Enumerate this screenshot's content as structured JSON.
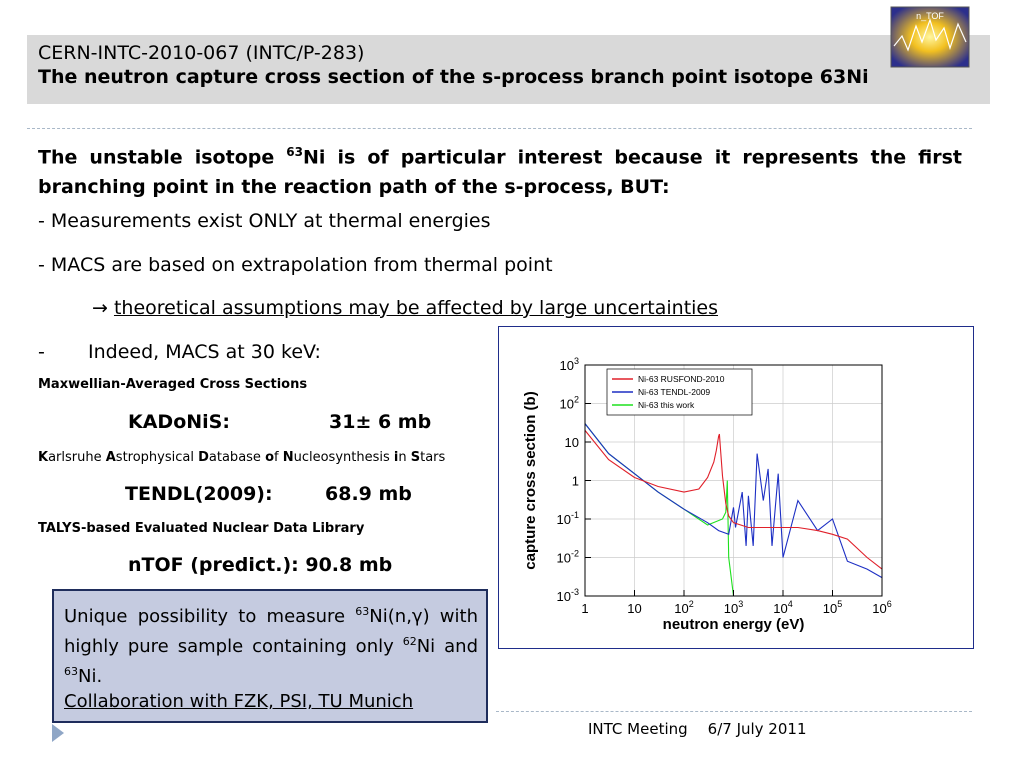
{
  "header": {
    "line1": "CERN-INTC-2010-067 (INTC/P-283)",
    "line2": "The neutron capture cross section of the s-process branch point isotope 63Ni"
  },
  "logo": {
    "text": "n_TOF"
  },
  "intro": {
    "part1": "The unstable isotope ",
    "sup": "63",
    "part2": "Ni is of particular interest because it represents the first  branching point in the reaction path of the s-process, BUT:"
  },
  "bullets": {
    "b1": "- Measurements exist ONLY at thermal energies",
    "b2": "- MACS are based on extrapolation from thermal point",
    "arrow": "→",
    "arrow_text": "theoretical assumptions may be affected by large uncertainties",
    "b3_dash": "-",
    "b3_text": "Indeed, MACS at 30 keV:"
  },
  "macs_def": "Maxwellian-Averaged Cross Sections",
  "kadonis": {
    "label": "KADoNiS:",
    "value": "31± 6 mb"
  },
  "kadonis_full": [
    {
      "b": "K",
      "n": "arlsruhe "
    },
    {
      "b": "A",
      "n": "strophysical "
    },
    {
      "b": "D",
      "n": "atabase "
    },
    {
      "b": "o",
      "n": "f "
    },
    {
      "b": "N",
      "n": "ucleosynthesis "
    },
    {
      "b": "i",
      "n": "n "
    },
    {
      "b": "S",
      "n": "tars"
    }
  ],
  "tendl": {
    "label": "TENDL(2009):",
    "value": "68.9 mb"
  },
  "tendl_full": "TALYS-based Evaluated Nuclear Data Library",
  "ntof": "nTOF (predict.): 90.8 mb",
  "box": {
    "t1": "Unique possibility to measure ",
    "s1": "63",
    "t2": "Ni(n,γ) with highly pure sample  containing only ",
    "s2": "62",
    "t3": "Ni and ",
    "s3": "63",
    "t4": "Ni.",
    "collab": "Collaboration with FZK, PSI, TU Munich"
  },
  "footer": {
    "meeting": "INTC Meeting",
    "date": "6/7 July 2011"
  },
  "chart_data": {
    "type": "line",
    "xlabel": "neutron energy (eV)",
    "ylabel": "capture cross section (b)",
    "xscale": "log",
    "yscale": "log",
    "xlim": [
      1,
      1000000
    ],
    "ylim": [
      0.001,
      1000
    ],
    "x_ticks": [
      {
        "value": 1,
        "base": "1",
        "exp": ""
      },
      {
        "value": 10,
        "base": "10",
        "exp": ""
      },
      {
        "value": 100,
        "base": "10",
        "exp": "2"
      },
      {
        "value": 1000,
        "base": "10",
        "exp": "3"
      },
      {
        "value": 10000,
        "base": "10",
        "exp": "4"
      },
      {
        "value": 100000,
        "base": "10",
        "exp": "5"
      },
      {
        "value": 1000000,
        "base": "10",
        "exp": "6"
      }
    ],
    "y_ticks": [
      {
        "value": 1000,
        "base": "10",
        "exp": "3"
      },
      {
        "value": 100,
        "base": "10",
        "exp": "2"
      },
      {
        "value": 10,
        "base": "10",
        "exp": ""
      },
      {
        "value": 1,
        "base": "1",
        "exp": ""
      },
      {
        "value": 0.1,
        "base": "10",
        "exp": "-1"
      },
      {
        "value": 0.01,
        "base": "10",
        "exp": "-2"
      },
      {
        "value": 0.001,
        "base": "10",
        "exp": "-3"
      }
    ],
    "grid": true,
    "legend": "top-left",
    "series": [
      {
        "name": "Ni-63 RUSFOND-2010",
        "color": "#e0202a",
        "x": [
          1,
          3,
          10,
          30,
          100,
          200,
          300,
          400,
          450,
          500,
          520,
          550,
          600,
          700,
          800,
          1000,
          2000,
          5000,
          10000,
          20000,
          50000,
          100000,
          200000,
          500000,
          1000000
        ],
        "y": [
          20,
          3.5,
          1.2,
          0.7,
          0.5,
          0.6,
          1.2,
          3,
          6,
          14,
          16,
          6,
          1.3,
          0.25,
          0.12,
          0.08,
          0.06,
          0.06,
          0.06,
          0.06,
          0.05,
          0.04,
          0.03,
          0.01,
          0.005
        ]
      },
      {
        "name": "Ni-63 TENDL-2009",
        "color": "#1d2fc4",
        "x": [
          1,
          3,
          10,
          30,
          100,
          300,
          500,
          800,
          1000,
          1100,
          1500,
          1800,
          2000,
          2500,
          3000,
          4000,
          5000,
          6000,
          8000,
          10000,
          20000,
          50000,
          100000,
          200000,
          500000,
          1000000
        ],
        "y": [
          30,
          5,
          1.5,
          0.5,
          0.18,
          0.08,
          0.05,
          0.04,
          0.2,
          0.06,
          0.5,
          0.02,
          0.4,
          0.02,
          5,
          0.3,
          2,
          0.02,
          1.5,
          0.01,
          0.3,
          0.05,
          0.1,
          0.008,
          0.005,
          0.003
        ]
      },
      {
        "name": "Ni-63 this work",
        "color": "#1ee01e",
        "x": [
          1,
          3,
          10,
          30,
          100,
          300,
          600,
          700,
          750,
          800,
          1000,
          2000,
          5000,
          10000,
          20000,
          50000,
          100000,
          200000,
          500000,
          1000000
        ],
        "y": [
          30,
          5,
          1.5,
          0.5,
          0.18,
          0.07,
          0.1,
          0.15,
          1,
          0.01,
          0.001,
          0.001,
          0.001,
          0.001,
          0.001,
          0.001,
          0.001,
          0.001,
          0.001,
          0.001
        ]
      }
    ]
  }
}
